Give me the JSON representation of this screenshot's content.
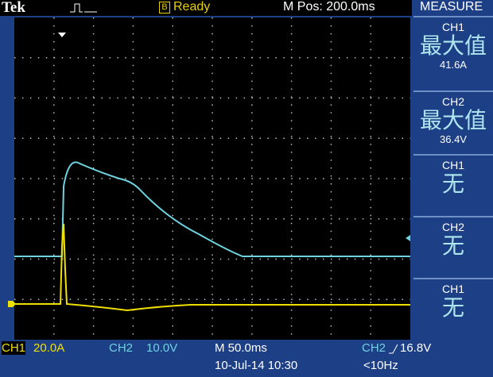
{
  "header": {
    "brand": "Tek",
    "status_icon": "B",
    "status": "Ready",
    "position": "M Pos: 200.0ms",
    "menu": "MEASURE"
  },
  "measurements": [
    {
      "channel": "CH1",
      "label": "最大值",
      "value": "41.6A"
    },
    {
      "channel": "CH2",
      "label": "最大值",
      "value": "36.4V"
    },
    {
      "channel": "CH1",
      "label": "无"
    },
    {
      "channel": "CH2",
      "label": "无"
    },
    {
      "channel": "CH1",
      "label": "无"
    }
  ],
  "footer": {
    "ch1": "CH1",
    "ch1_scale": "20.0A",
    "ch2": "CH2",
    "ch2_scale": "10.0V",
    "timebase": "M 50.0ms",
    "date": "10-Jul-14 10:30",
    "trigger_source": "CH2",
    "trigger_level": "16.8V",
    "frequency": "<10Hz"
  }
}
